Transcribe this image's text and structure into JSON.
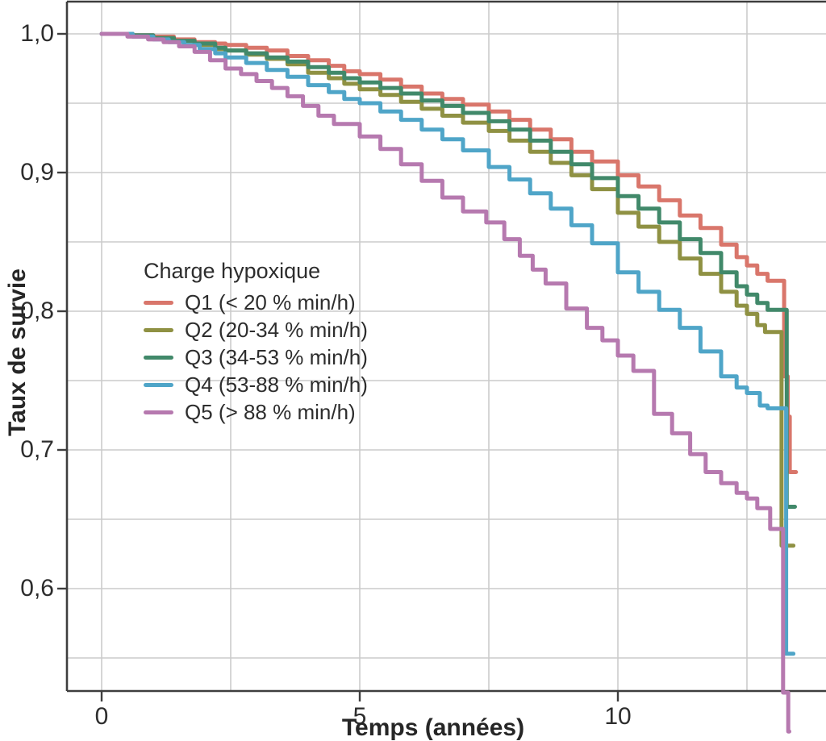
{
  "axes": {
    "x_label": "Temps (années)",
    "y_label": "Taux de survie"
  },
  "legend": {
    "title": "Charge hypoxique",
    "items": [
      {
        "label": "Q1 (< 20 % min/h)",
        "color": "#D9766B"
      },
      {
        "label": "Q2 (20-34 % min/h)",
        "color": "#8F9143"
      },
      {
        "label": "Q3 (34-53 % min/h)",
        "color": "#41896A"
      },
      {
        "label": "Q4 (53-88 % min/h)",
        "color": "#4FA5C8"
      },
      {
        "label": "Q5 (> 88 % min/h)",
        "color": "#B679AF"
      }
    ]
  },
  "chart_data": {
    "type": "line",
    "subtype": "kaplan-meier-step-survival",
    "title": "",
    "xlabel": "Temps (années)",
    "ylabel": "Taux de survie",
    "xlim": [
      -0.67,
      14.03
    ],
    "ylim": [
      0.525,
      1.023
    ],
    "grid": true,
    "x_gridlines": [
      0,
      2.5,
      5,
      7.5,
      10,
      12.5
    ],
    "y_gridlines": [
      1.0,
      0.95,
      0.9,
      0.85,
      0.8,
      0.75,
      0.7,
      0.65,
      0.6,
      0.55
    ],
    "x_ticks": [
      {
        "label": "0",
        "value": 0
      },
      {
        "label": "5",
        "value": 5
      },
      {
        "label": "10",
        "value": 10
      }
    ],
    "y_ticks": [
      {
        "label": "1,0",
        "value": 1.0
      },
      {
        "label": "0,9",
        "value": 0.9
      },
      {
        "label": "0,8",
        "value": 0.8
      },
      {
        "label": "0,7",
        "value": 0.7
      },
      {
        "label": "0,6",
        "value": 0.6
      }
    ],
    "legend_title": "Charge hypoxique",
    "legend_position": "inside-middle-left",
    "series": [
      {
        "name": "Q1 (< 20 % min/h)",
        "color": "#D9766B",
        "points": [
          [
            0,
            1.0
          ],
          [
            0.6,
            0.999
          ],
          [
            1.0,
            0.998
          ],
          [
            1.4,
            0.996
          ],
          [
            1.8,
            0.994
          ],
          [
            2.2,
            0.993
          ],
          [
            2.4,
            0.992
          ],
          [
            2.8,
            0.99
          ],
          [
            3.2,
            0.988
          ],
          [
            3.6,
            0.984
          ],
          [
            4.0,
            0.981
          ],
          [
            4.4,
            0.977
          ],
          [
            4.7,
            0.973
          ],
          [
            5.0,
            0.971
          ],
          [
            5.4,
            0.967
          ],
          [
            5.8,
            0.962
          ],
          [
            6.2,
            0.957
          ],
          [
            6.6,
            0.953
          ],
          [
            7.0,
            0.949
          ],
          [
            7.5,
            0.944
          ],
          [
            7.9,
            0.938
          ],
          [
            8.3,
            0.931
          ],
          [
            8.7,
            0.924
          ],
          [
            9.1,
            0.915
          ],
          [
            9.5,
            0.908
          ],
          [
            10.0,
            0.898
          ],
          [
            10.4,
            0.89
          ],
          [
            10.8,
            0.88
          ],
          [
            11.2,
            0.869
          ],
          [
            11.6,
            0.86
          ],
          [
            12.0,
            0.848
          ],
          [
            12.3,
            0.839
          ],
          [
            12.5,
            0.833
          ],
          [
            12.7,
            0.827
          ],
          [
            12.9,
            0.822
          ],
          [
            13.22,
            0.753
          ],
          [
            13.29,
            0.724
          ],
          [
            13.33,
            0.684
          ],
          [
            13.45,
            0.684
          ]
        ]
      },
      {
        "name": "Q2 (20-34 % min/h)",
        "color": "#8F9143",
        "points": [
          [
            0,
            1.0
          ],
          [
            0.6,
            0.998
          ],
          [
            1.0,
            0.997
          ],
          [
            1.4,
            0.995
          ],
          [
            1.8,
            0.992
          ],
          [
            2.2,
            0.989
          ],
          [
            2.4,
            0.988
          ],
          [
            2.8,
            0.985
          ],
          [
            3.2,
            0.982
          ],
          [
            3.6,
            0.978
          ],
          [
            4.0,
            0.972
          ],
          [
            4.4,
            0.968
          ],
          [
            4.7,
            0.964
          ],
          [
            5.0,
            0.96
          ],
          [
            5.4,
            0.956
          ],
          [
            5.8,
            0.951
          ],
          [
            6.2,
            0.946
          ],
          [
            6.6,
            0.941
          ],
          [
            7.0,
            0.936
          ],
          [
            7.5,
            0.93
          ],
          [
            7.9,
            0.923
          ],
          [
            8.3,
            0.915
          ],
          [
            8.7,
            0.907
          ],
          [
            9.1,
            0.898
          ],
          [
            9.5,
            0.888
          ],
          [
            10.0,
            0.871
          ],
          [
            10.4,
            0.861
          ],
          [
            10.8,
            0.85
          ],
          [
            11.2,
            0.838
          ],
          [
            11.6,
            0.827
          ],
          [
            12.0,
            0.814
          ],
          [
            12.3,
            0.804
          ],
          [
            12.5,
            0.798
          ],
          [
            12.7,
            0.79
          ],
          [
            12.85,
            0.785
          ],
          [
            13.17,
            0.631
          ],
          [
            13.4,
            0.631
          ]
        ]
      },
      {
        "name": "Q3 (34-53 % min/h)",
        "color": "#41896A",
        "points": [
          [
            0,
            1.0
          ],
          [
            0.6,
            0.999
          ],
          [
            1.0,
            0.997
          ],
          [
            1.4,
            0.995
          ],
          [
            1.8,
            0.993
          ],
          [
            2.2,
            0.99
          ],
          [
            2.4,
            0.988
          ],
          [
            2.8,
            0.986
          ],
          [
            3.2,
            0.983
          ],
          [
            3.6,
            0.98
          ],
          [
            4.0,
            0.976
          ],
          [
            4.4,
            0.972
          ],
          [
            4.7,
            0.968
          ],
          [
            5.0,
            0.965
          ],
          [
            5.4,
            0.961
          ],
          [
            5.8,
            0.957
          ],
          [
            6.2,
            0.952
          ],
          [
            6.6,
            0.948
          ],
          [
            7.0,
            0.943
          ],
          [
            7.5,
            0.937
          ],
          [
            7.9,
            0.931
          ],
          [
            8.3,
            0.923
          ],
          [
            8.7,
            0.915
          ],
          [
            9.1,
            0.906
          ],
          [
            9.5,
            0.896
          ],
          [
            10.0,
            0.883
          ],
          [
            10.4,
            0.874
          ],
          [
            10.8,
            0.864
          ],
          [
            11.2,
            0.852
          ],
          [
            11.6,
            0.842
          ],
          [
            12.0,
            0.828
          ],
          [
            12.3,
            0.818
          ],
          [
            12.5,
            0.812
          ],
          [
            12.7,
            0.806
          ],
          [
            12.9,
            0.801
          ],
          [
            13.27,
            0.659
          ],
          [
            13.43,
            0.659
          ]
        ]
      },
      {
        "name": "Q4 (53-88 % min/h)",
        "color": "#4FA5C8",
        "points": [
          [
            0,
            1.0
          ],
          [
            0.6,
            0.998
          ],
          [
            1.0,
            0.996
          ],
          [
            1.3,
            0.994
          ],
          [
            1.6,
            0.992
          ],
          [
            1.9,
            0.989
          ],
          [
            2.2,
            0.986
          ],
          [
            2.4,
            0.983
          ],
          [
            2.8,
            0.979
          ],
          [
            3.2,
            0.974
          ],
          [
            3.6,
            0.969
          ],
          [
            4.0,
            0.963
          ],
          [
            4.4,
            0.958
          ],
          [
            4.7,
            0.953
          ],
          [
            5.0,
            0.95
          ],
          [
            5.4,
            0.944
          ],
          [
            5.8,
            0.938
          ],
          [
            6.2,
            0.931
          ],
          [
            6.6,
            0.924
          ],
          [
            7.0,
            0.916
          ],
          [
            7.5,
            0.904
          ],
          [
            7.9,
            0.895
          ],
          [
            8.3,
            0.885
          ],
          [
            8.7,
            0.874
          ],
          [
            9.1,
            0.862
          ],
          [
            9.5,
            0.849
          ],
          [
            10.0,
            0.828
          ],
          [
            10.4,
            0.814
          ],
          [
            10.8,
            0.801
          ],
          [
            11.2,
            0.788
          ],
          [
            11.6,
            0.771
          ],
          [
            12.0,
            0.753
          ],
          [
            12.3,
            0.745
          ],
          [
            12.5,
            0.741
          ],
          [
            12.75,
            0.732
          ],
          [
            12.9,
            0.73
          ],
          [
            13.26,
            0.553
          ],
          [
            13.4,
            0.553
          ]
        ]
      },
      {
        "name": "Q5 (> 88 % min/h)",
        "color": "#B679AF",
        "points": [
          [
            0,
            1.0
          ],
          [
            0.5,
            0.998
          ],
          [
            0.9,
            0.996
          ],
          [
            1.2,
            0.994
          ],
          [
            1.5,
            0.991
          ],
          [
            1.8,
            0.987
          ],
          [
            2.1,
            0.981
          ],
          [
            2.4,
            0.975
          ],
          [
            2.7,
            0.971
          ],
          [
            3.0,
            0.966
          ],
          [
            3.3,
            0.961
          ],
          [
            3.6,
            0.955
          ],
          [
            3.9,
            0.948
          ],
          [
            4.2,
            0.941
          ],
          [
            4.5,
            0.935
          ],
          [
            5.0,
            0.926
          ],
          [
            5.4,
            0.917
          ],
          [
            5.8,
            0.906
          ],
          [
            6.2,
            0.894
          ],
          [
            6.6,
            0.882
          ],
          [
            7.0,
            0.872
          ],
          [
            7.45,
            0.864
          ],
          [
            7.8,
            0.852
          ],
          [
            8.1,
            0.84
          ],
          [
            8.35,
            0.83
          ],
          [
            8.6,
            0.82
          ],
          [
            9.0,
            0.802
          ],
          [
            9.4,
            0.788
          ],
          [
            9.7,
            0.779
          ],
          [
            10.0,
            0.768
          ],
          [
            10.3,
            0.757
          ],
          [
            10.7,
            0.726
          ],
          [
            11.05,
            0.712
          ],
          [
            11.4,
            0.697
          ],
          [
            11.7,
            0.684
          ],
          [
            12.0,
            0.676
          ],
          [
            12.3,
            0.669
          ],
          [
            12.5,
            0.665
          ],
          [
            12.7,
            0.658
          ],
          [
            12.95,
            0.643
          ],
          [
            13.2,
            0.525
          ],
          [
            13.3,
            0.497
          ],
          [
            13.32,
            0.497
          ]
        ]
      }
    ]
  }
}
